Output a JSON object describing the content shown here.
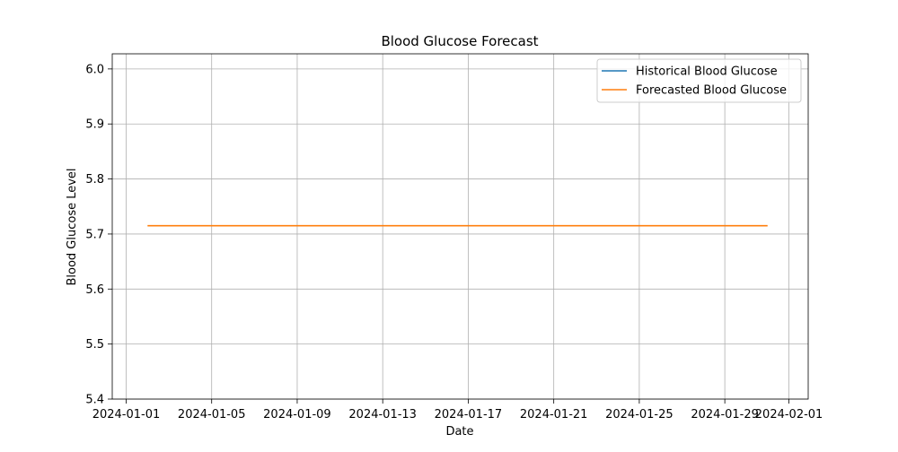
{
  "chart_data": {
    "type": "line",
    "title": "Blood Glucose Forecast",
    "xlabel": "Date",
    "ylabel": "Blood Glucose Level",
    "x_ticks": [
      "2024-01-01",
      "2024-01-05",
      "2024-01-09",
      "2024-01-13",
      "2024-01-17",
      "2024-01-21",
      "2024-01-25",
      "2024-01-29",
      "2024-02-01"
    ],
    "xlim": [
      "2024-01-01",
      "2024-02-01"
    ],
    "y_ticks": [
      5.4,
      5.5,
      5.6,
      5.7,
      5.8,
      5.9,
      6.0
    ],
    "ylim": [
      5.4,
      6.0
    ],
    "grid": true,
    "legend_position": "top-right",
    "series": [
      {
        "name": "Historical Blood Glucose",
        "color": "#1f77b4",
        "x": [],
        "y": []
      },
      {
        "name": "Forecasted Blood Glucose",
        "color": "#ff7f0e",
        "x": [
          "2024-01-02",
          "2024-01-31"
        ],
        "y": [
          5.715,
          5.715
        ]
      }
    ]
  }
}
